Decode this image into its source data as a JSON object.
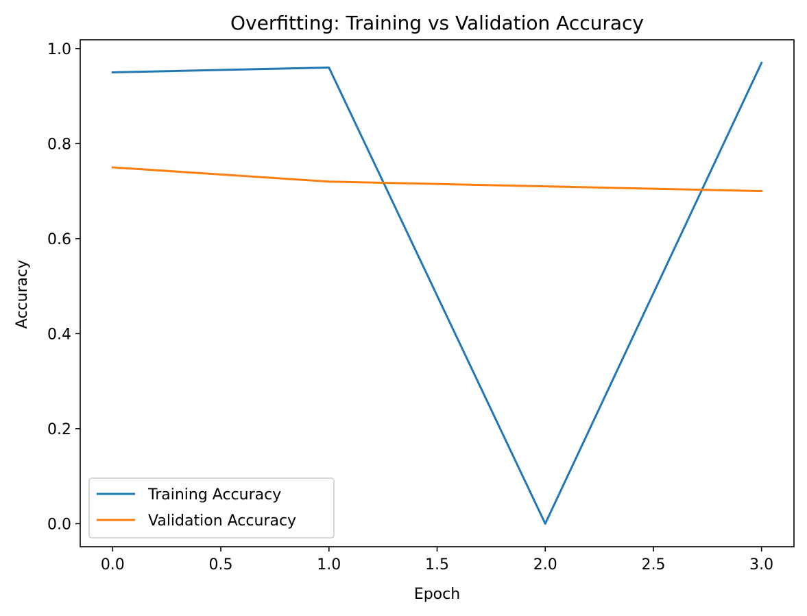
{
  "chart_data": {
    "type": "line",
    "title": "Overfitting: Training vs Validation Accuracy",
    "xlabel": "Epoch",
    "ylabel": "Accuracy",
    "x": [
      0,
      1,
      2,
      3
    ],
    "series": [
      {
        "name": "Training Accuracy",
        "values": [
          0.95,
          0.96,
          0.0,
          0.97
        ],
        "color": "#1f77b4"
      },
      {
        "name": "Validation Accuracy",
        "values": [
          0.75,
          0.72,
          0.71,
          0.7
        ],
        "color": "#ff7f0e"
      }
    ],
    "xlim": [
      -0.15,
      3.15
    ],
    "ylim": [
      -0.0485,
      1.0185
    ],
    "xticks": [
      0.0,
      0.5,
      1.0,
      1.5,
      2.0,
      2.5,
      3.0
    ],
    "xtick_labels": [
      "0.0",
      "0.5",
      "1.0",
      "1.5",
      "2.0",
      "2.5",
      "3.0"
    ],
    "yticks": [
      0.0,
      0.2,
      0.4,
      0.6,
      0.8,
      1.0
    ],
    "ytick_labels": [
      "0.0",
      "0.2",
      "0.4",
      "0.6",
      "0.8",
      "1.0"
    ],
    "grid": false,
    "legend_position": "lower-left"
  }
}
